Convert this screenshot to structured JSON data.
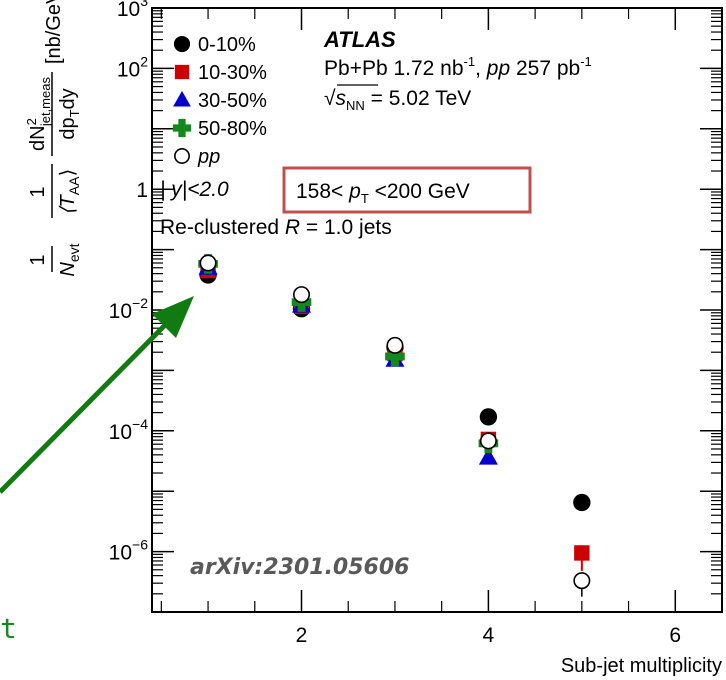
{
  "chart_data": {
    "type": "scatter",
    "xlabel": "Sub-jet multiplicity",
    "ylabel_parts": {
      "frac1_num": "1",
      "frac1_den": "N",
      "frac1_den_sub": "evt",
      "frac2_num": "1",
      "frac2_den": "⟨T",
      "frac2_den_sub": "AA",
      "frac2_den_close": "⟩",
      "frac3_num": "dN",
      "frac3_num_sup": "2",
      "frac3_num_sub": "jet,meas",
      "frac3_den": "dp",
      "frac3_den_sub": "T",
      "frac3_den_tail": "dy",
      "units": "[nb/GeV]"
    },
    "xlim": [
      0.4,
      6.5
    ],
    "ylim": [
      1e-07,
      1000
    ],
    "yscale": "log",
    "x_ticks": [
      2,
      4,
      6
    ],
    "x_tick_labels": [
      "2",
      "4",
      "6"
    ],
    "y_ticks": [
      {
        "value": 1000,
        "base": "10",
        "exp": "3"
      },
      {
        "value": 100,
        "base": "10",
        "exp": "2"
      },
      {
        "value": 1,
        "base": "1",
        "exp": ""
      },
      {
        "value": 0.01,
        "base": "10",
        "exp": "−2"
      },
      {
        "value": 0.0001,
        "base": "10",
        "exp": "−4"
      },
      {
        "value": 1e-06,
        "base": "10",
        "exp": "−6"
      }
    ],
    "series": [
      {
        "name": "0-10%",
        "marker": "circle",
        "color": "#000000",
        "x": [
          1,
          2,
          3,
          4,
          5
        ],
        "y": [
          0.038,
          0.0105,
          0.0024,
          0.00017,
          6.5e-06
        ]
      },
      {
        "name": "10-30%",
        "marker": "square",
        "color": "#cc0000",
        "x": [
          1,
          2,
          3,
          4,
          5
        ],
        "y": [
          0.045,
          0.0115,
          0.0019,
          7.2e-05,
          9.5e-07
        ]
      },
      {
        "name": "30-50%",
        "marker": "triangle",
        "color": "#0000cc",
        "x": [
          1,
          2,
          3,
          4,
          5
        ],
        "y": [
          0.05,
          0.0118,
          0.0015,
          3.6e-05,
          null
        ]
      },
      {
        "name": "50-80%",
        "marker": "cross",
        "color": "#11891d",
        "x": [
          1,
          2,
          3,
          4,
          5
        ],
        "y": [
          0.058,
          0.0135,
          0.0017,
          6.2e-05,
          null
        ]
      },
      {
        "name": "pp",
        "marker": "open-circle",
        "color": "#000000",
        "x": [
          1,
          2,
          3,
          4,
          5
        ],
        "y": [
          0.06,
          0.018,
          0.0026,
          6.8e-05,
          3.3e-07
        ]
      }
    ],
    "legend_entries": [
      "0-10%",
      "10-30%",
      "30-50%",
      "50-80%",
      "pp"
    ],
    "legend_placement": "top-left",
    "annotations": {
      "atlas": "ATLAS",
      "lumi": {
        "pre": "Pb+Pb 1.72 nb",
        "exp1": "-1",
        "mid": ", ",
        "pp": "pp",
        "post": " 257 pb",
        "exp2": "-1"
      },
      "energy": {
        "sqrt": "√",
        "s": "s",
        "sub": "NN",
        "post": " =  5.02 TeV"
      },
      "rapidity": "| y|<2.0",
      "pt_range": {
        "pre": "158< ",
        "p": "p",
        "sub": "T",
        "post": " <200 GeV"
      },
      "jets": {
        "pre": "Re-clustered ",
        "r": "R",
        "post": " = 1.0 jets"
      },
      "arxiv": "arXiv:2301.05606"
    },
    "arrow_color": "#117a11",
    "box_color": "#c0504d",
    "partial_glyph": "t"
  }
}
